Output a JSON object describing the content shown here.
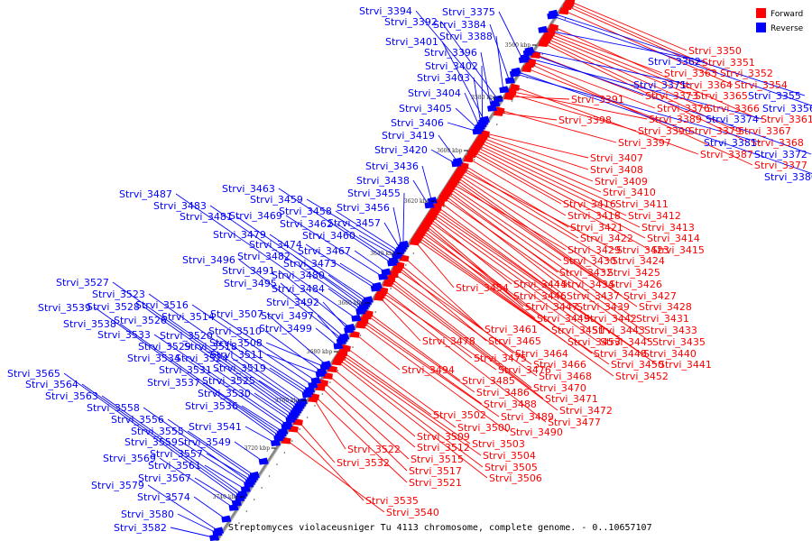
{
  "legend": {
    "forward_label": "Forward",
    "reverse_label": "Reverse",
    "forward_color": "#ff0000",
    "reverse_color": "#0000ff"
  },
  "caption": "Streptomyces violaceusniger Tu 4113 chromosome, complete genome. - 0..10657107",
  "ticks": [
    "3560 kbp",
    "3580 kbp",
    "3600 kbp",
    "3620 kbp",
    "3640 kbp",
    "3660 kbp",
    "3680 kbp",
    "3700 kbp",
    "3720 kbp",
    "3740 kbp"
  ],
  "forward_genes": [
    "Strvi_3350",
    "Strvi_3351",
    "Strvi_3352",
    "Strvi_3354",
    "Strvi_3361",
    "Strvi_3363",
    "Strvi_3364",
    "Strvi_3365",
    "Strvi_3366",
    "Strvi_3367",
    "Strvi_3368",
    "Strvi_3373",
    "Strvi_3376",
    "Strvi_3377",
    "Strvi_3379",
    "Strvi_3387",
    "Strvi_3389",
    "Strvi_3390",
    "Strvi_3391",
    "Strvi_3397",
    "Strvi_3398",
    "Strvi_3407",
    "Strvi_3408",
    "Strvi_3409",
    "Strvi_3410",
    "Strvi_3411",
    "Strvi_3412",
    "Strvi_3413",
    "Strvi_3414",
    "Strvi_3415",
    "Strvi_3416",
    "Strvi_3418",
    "Strvi_3421",
    "Strvi_3422",
    "Strvi_3423",
    "Strvi_3424",
    "Strvi_3425",
    "Strvi_3426",
    "Strvi_3427",
    "Strvi_3428",
    "Strvi_3429",
    "Strvi_3430",
    "Strvi_3431",
    "Strvi_3432",
    "Strvi_3433",
    "Strvi_3434",
    "Strvi_3435",
    "Strvi_3437",
    "Strvi_3439",
    "Strvi_3440",
    "Strvi_3441",
    "Strvi_3442",
    "Strvi_3443",
    "Strvi_3444",
    "Strvi_3445",
    "Strvi_3446",
    "Strvi_3447",
    "Strvi_3448",
    "Strvi_3449",
    "Strvi_3450",
    "Strvi_3451",
    "Strvi_3452",
    "Strvi_3453",
    "Strvi_3454",
    "Strvi_3461",
    "Strvi_3464",
    "Strvi_3465",
    "Strvi_3466",
    "Strvi_3468",
    "Strvi_3470",
    "Strvi_3471",
    "Strvi_3472",
    "Strvi_3475",
    "Strvi_3476",
    "Strvi_3477",
    "Strvi_3478",
    "Strvi_3485",
    "Strvi_3486",
    "Strvi_3488",
    "Strvi_3489",
    "Strvi_3490",
    "Strvi_3494",
    "Strvi_3500",
    "Strvi_3502",
    "Strvi_3503",
    "Strvi_3504",
    "Strvi_3505",
    "Strvi_3506",
    "Strvi_3509",
    "Strvi_3512",
    "Strvi_3515",
    "Strvi_3517",
    "Strvi_3521",
    "Strvi_3522",
    "Strvi_3532",
    "Strvi_3535",
    "Strvi_3540"
  ],
  "reverse_genes": [
    "Strvi_3355",
    "Strvi_3356",
    "Strvi_3362",
    "Strvi_3371",
    "Strvi_3372",
    "Strvi_3374",
    "Strvi_3375",
    "Strvi_3380",
    "Strvi_3381",
    "Strvi_3384",
    "Strvi_3388",
    "Strvi_3392",
    "Strvi_3394",
    "Strvi_3396",
    "Strvi_3401",
    "Strvi_3402",
    "Strvi_3403",
    "Strvi_3404",
    "Strvi_3405",
    "Strvi_3406",
    "Strvi_3419",
    "Strvi_3420",
    "Strvi_3436",
    "Strvi_3438",
    "Strvi_3455",
    "Strvi_3456",
    "Strvi_3457",
    "Strvi_3458",
    "Strvi_3459",
    "Strvi_3460",
    "Strvi_3462",
    "Strvi_3463",
    "Strvi_3467",
    "Strvi_3469",
    "Strvi_3473",
    "Strvi_3474",
    "Strvi_3479",
    "Strvi_3480",
    "Strvi_3481",
    "Strvi_3482",
    "Strvi_3483",
    "Strvi_3484",
    "Strvi_3487",
    "Strvi_3491",
    "Strvi_3492",
    "Strvi_3495",
    "Strvi_3496",
    "Strvi_3497",
    "Strvi_3499",
    "Strvi_3507",
    "Strvi_3508",
    "Strvi_3510",
    "Strvi_3511",
    "Strvi_3514",
    "Strvi_3516",
    "Strvi_3518",
    "Strvi_3519",
    "Strvi_3520",
    "Strvi_3523",
    "Strvi_3524",
    "Strvi_3525",
    "Strvi_3526",
    "Strvi_3527",
    "Strvi_3528",
    "Strvi_3529",
    "Strvi_3530",
    "Strvi_3531",
    "Strvi_3533",
    "Strvi_3534",
    "Strvi_3536",
    "Strvi_3537",
    "Strvi_3538",
    "Strvi_3539",
    "Strvi_3541",
    "Strvi_3549",
    "Strvi_3555",
    "Strvi_3556",
    "Strvi_3557",
    "Strvi_3558",
    "Strvi_3559",
    "Strvi_3561",
    "Strvi_3563",
    "Strvi_3564",
    "Strvi_3565",
    "Strvi_3567",
    "Strvi_3569",
    "Strvi_3574",
    "Strvi_3579",
    "Strvi_3580",
    "Strvi_3582"
  ]
}
